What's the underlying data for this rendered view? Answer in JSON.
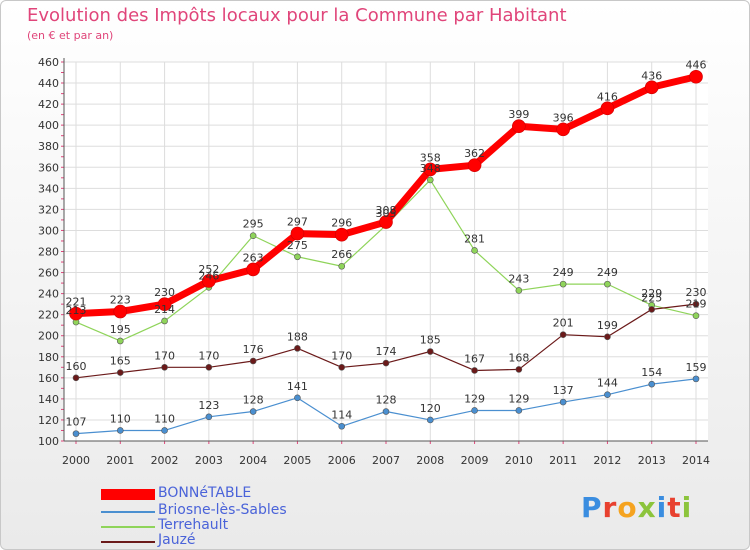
{
  "header": {
    "title": "Evolution des Impôts locaux pour la Commune par Habitant",
    "subtitle": "(en € et par an)"
  },
  "logo": {
    "text": "Proxiti",
    "colors": [
      "#3a8de0",
      "#e8412f",
      "#f5a31f",
      "#8cc43c",
      "#3a8de0",
      "#e8412f",
      "#8cc43c"
    ]
  },
  "chart_data": {
    "type": "line",
    "x": [
      "2000",
      "2001",
      "2002",
      "2003",
      "2004",
      "2005",
      "2006",
      "2007",
      "2008",
      "2009",
      "2010",
      "2011",
      "2012",
      "2013",
      "2014"
    ],
    "ylim": [
      100,
      460
    ],
    "yticks": [
      "100",
      "120",
      "140",
      "160",
      "180",
      "200",
      "220",
      "240",
      "260",
      "280",
      "300",
      "320",
      "340",
      "360",
      "380",
      "400",
      "420",
      "440",
      "460"
    ],
    "grid": true,
    "legend_position": "bottom-left",
    "series": [
      {
        "name": "Briosne-lès-Sables",
        "color": "#4a8fd0",
        "width": 1.2,
        "values": [
          107,
          110,
          110,
          123,
          128,
          141,
          114,
          128,
          120,
          129,
          129,
          137,
          144,
          154,
          159
        ]
      },
      {
        "name": "Terrehault",
        "color": "#8fd45a",
        "width": 1.2,
        "values": [
          213,
          195,
          214,
          246,
          295,
          275,
          266,
          305,
          348,
          281,
          243,
          249,
          249,
          229,
          219
        ]
      },
      {
        "name": "Jauzé",
        "color": "#6b1a1a",
        "width": 1.2,
        "values": [
          160,
          165,
          170,
          170,
          176,
          188,
          170,
          174,
          185,
          167,
          168,
          201,
          199,
          225,
          230
        ]
      },
      {
        "name": "BONNéTABLE",
        "color": "#ff0000",
        "width": 7,
        "values": [
          221,
          223,
          230,
          252,
          263,
          297,
          296,
          308,
          358,
          362,
          399,
          396,
          416,
          436,
          446
        ]
      }
    ],
    "labels": [
      {
        "series": "BONNéTABLE",
        "texts": [
          "221",
          "223",
          "230",
          "252",
          "263",
          "297",
          "296",
          "308",
          "358",
          "362",
          "399",
          "396",
          "416",
          "436",
          "446"
        ]
      },
      {
        "series": "Briosne-lès-Sables",
        "texts": [
          "107",
          "110",
          "110",
          "123",
          "128",
          "141",
          "114",
          "128",
          "120",
          "129",
          "129",
          "137",
          "144",
          "154",
          "159"
        ]
      },
      {
        "series": "Terrehault",
        "texts": [
          "213",
          "195",
          "214",
          "246",
          "295",
          "275",
          "266",
          "305",
          "348",
          "281",
          "243",
          "249",
          "249",
          "229",
          "219"
        ]
      },
      {
        "series": "Jauzé",
        "texts": [
          "160",
          "165",
          "170",
          "170",
          "176",
          "188",
          "170",
          "174",
          "185",
          "167",
          "168",
          "201",
          "199",
          "225",
          "230"
        ]
      }
    ]
  },
  "legend": {
    "items": [
      {
        "label": "BONNéTABLE",
        "color": "#ff0000",
        "thick": true
      },
      {
        "label": "Briosne-lès-Sables",
        "color": "#4a8fd0",
        "thick": false
      },
      {
        "label": "Terrehault",
        "color": "#8fd45a",
        "thick": false
      },
      {
        "label": "Jauzé",
        "color": "#6b1a1a",
        "thick": false
      }
    ]
  }
}
